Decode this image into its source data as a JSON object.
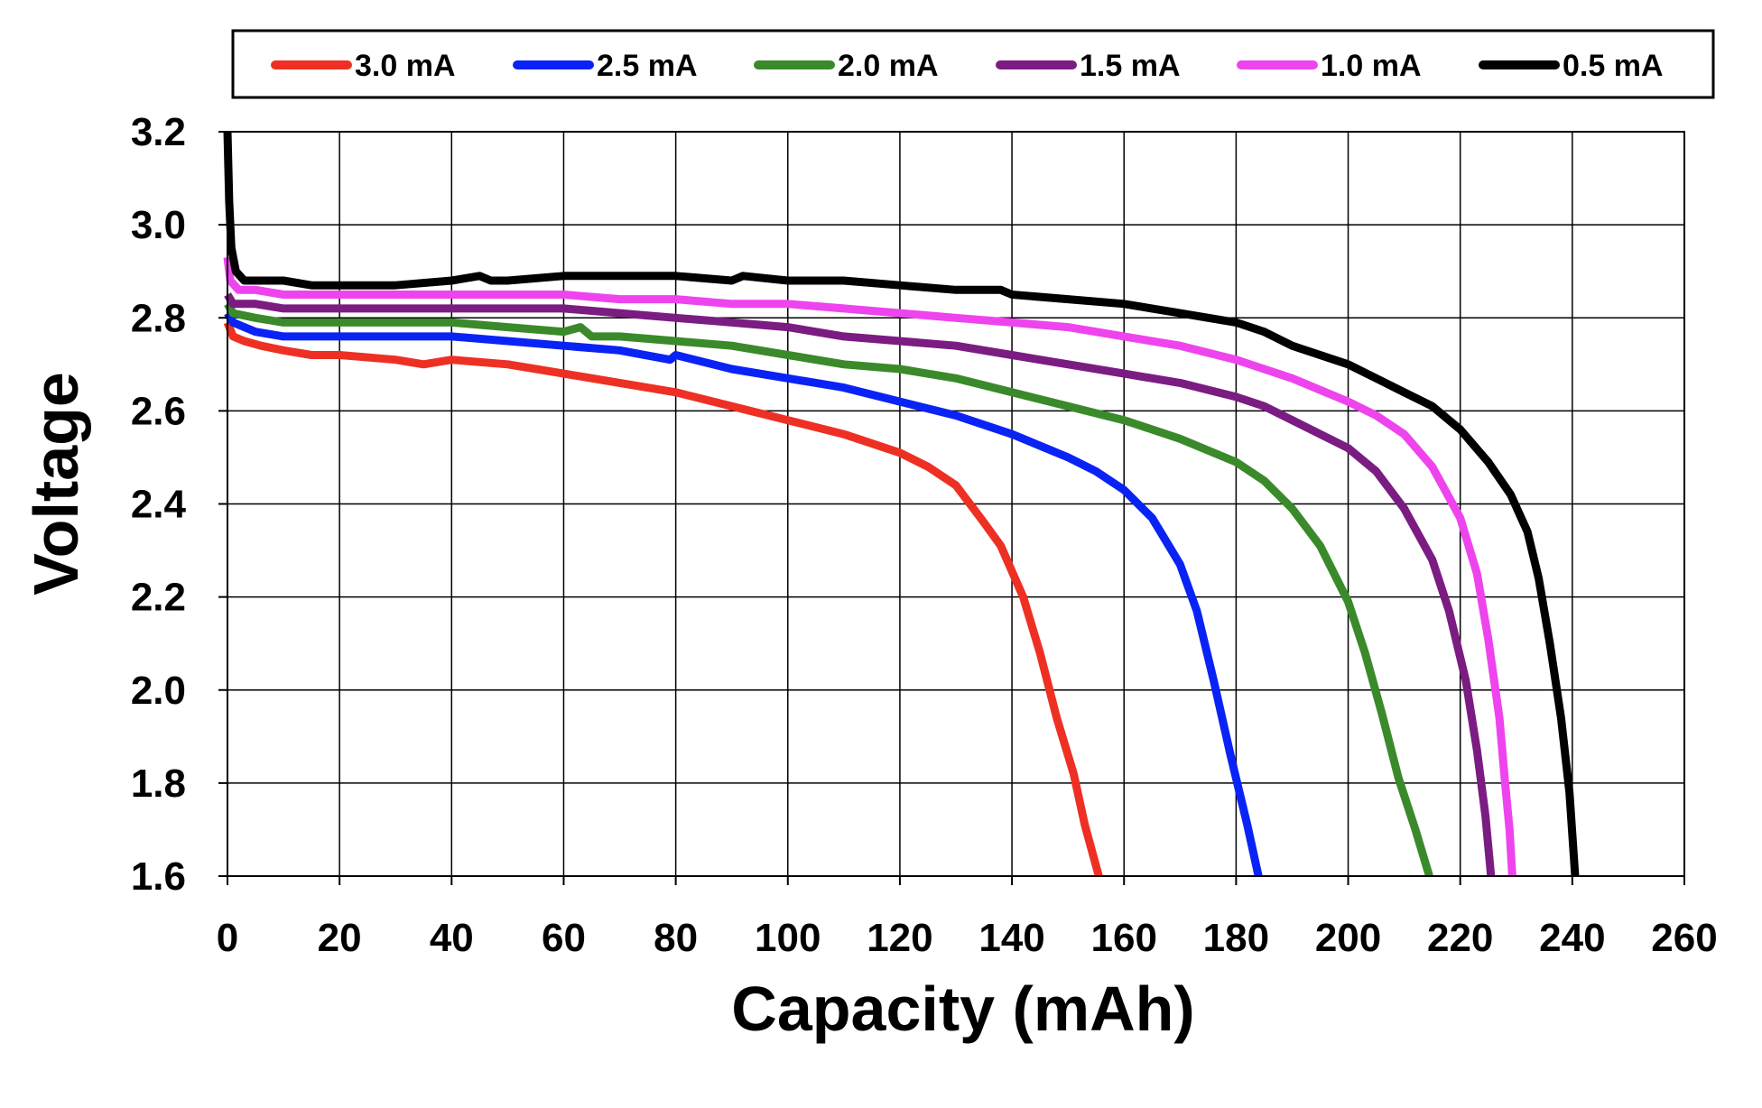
{
  "chart_data": {
    "type": "line",
    "title": "",
    "xlabel": "Capacity (mAh)",
    "ylabel": "Voltage",
    "xlim": [
      0,
      260
    ],
    "ylim": [
      1.6,
      3.2
    ],
    "xticks": [
      0,
      20,
      40,
      60,
      80,
      100,
      120,
      140,
      160,
      180,
      200,
      220,
      240,
      260
    ],
    "yticks": [
      "1.6",
      "1.8",
      "2.0",
      "2.2",
      "2.4",
      "2.6",
      "2.8",
      "3.0",
      "3.2"
    ],
    "grid": true,
    "legend_position": "top",
    "series": [
      {
        "name": "3.0 mA",
        "color": "#ee3024",
        "points": [
          [
            0,
            2.79
          ],
          [
            1,
            2.76
          ],
          [
            3,
            2.75
          ],
          [
            6,
            2.74
          ],
          [
            10,
            2.73
          ],
          [
            15,
            2.72
          ],
          [
            20,
            2.72
          ],
          [
            30,
            2.71
          ],
          [
            35,
            2.7
          ],
          [
            40,
            2.71
          ],
          [
            50,
            2.7
          ],
          [
            60,
            2.68
          ],
          [
            70,
            2.66
          ],
          [
            80,
            2.64
          ],
          [
            90,
            2.61
          ],
          [
            100,
            2.58
          ],
          [
            110,
            2.55
          ],
          [
            120,
            2.51
          ],
          [
            125,
            2.48
          ],
          [
            130,
            2.44
          ],
          [
            135,
            2.36
          ],
          [
            138,
            2.31
          ],
          [
            142,
            2.2
          ],
          [
            145,
            2.08
          ],
          [
            148,
            1.94
          ],
          [
            151,
            1.82
          ],
          [
            153,
            1.71
          ],
          [
            155.5,
            1.6
          ]
        ]
      },
      {
        "name": "2.5 mA",
        "color": "#0a23f5",
        "points": [
          [
            0,
            2.81
          ],
          [
            1,
            2.79
          ],
          [
            5,
            2.77
          ],
          [
            10,
            2.76
          ],
          [
            20,
            2.76
          ],
          [
            30,
            2.76
          ],
          [
            40,
            2.76
          ],
          [
            50,
            2.75
          ],
          [
            60,
            2.74
          ],
          [
            70,
            2.73
          ],
          [
            79,
            2.71
          ],
          [
            80,
            2.72
          ],
          [
            90,
            2.69
          ],
          [
            100,
            2.67
          ],
          [
            110,
            2.65
          ],
          [
            120,
            2.62
          ],
          [
            130,
            2.59
          ],
          [
            140,
            2.55
          ],
          [
            150,
            2.5
          ],
          [
            155,
            2.47
          ],
          [
            160,
            2.43
          ],
          [
            165,
            2.37
          ],
          [
            170,
            2.27
          ],
          [
            173,
            2.17
          ],
          [
            176,
            2.02
          ],
          [
            179,
            1.86
          ],
          [
            182,
            1.71
          ],
          [
            184,
            1.6
          ]
        ]
      },
      {
        "name": "2.0 mA",
        "color": "#3a8a2b",
        "points": [
          [
            0,
            2.83
          ],
          [
            1,
            2.81
          ],
          [
            5,
            2.8
          ],
          [
            10,
            2.79
          ],
          [
            20,
            2.79
          ],
          [
            30,
            2.79
          ],
          [
            40,
            2.79
          ],
          [
            50,
            2.78
          ],
          [
            60,
            2.77
          ],
          [
            63,
            2.78
          ],
          [
            65,
            2.76
          ],
          [
            70,
            2.76
          ],
          [
            80,
            2.75
          ],
          [
            90,
            2.74
          ],
          [
            100,
            2.72
          ],
          [
            110,
            2.7
          ],
          [
            120,
            2.69
          ],
          [
            130,
            2.67
          ],
          [
            140,
            2.64
          ],
          [
            150,
            2.61
          ],
          [
            160,
            2.58
          ],
          [
            170,
            2.54
          ],
          [
            180,
            2.49
          ],
          [
            185,
            2.45
          ],
          [
            190,
            2.39
          ],
          [
            195,
            2.31
          ],
          [
            200,
            2.19
          ],
          [
            203,
            2.08
          ],
          [
            206,
            1.95
          ],
          [
            209,
            1.81
          ],
          [
            212,
            1.7
          ],
          [
            214.5,
            1.6
          ]
        ]
      },
      {
        "name": "1.5 mA",
        "color": "#7b1c82",
        "points": [
          [
            0,
            2.85
          ],
          [
            1,
            2.83
          ],
          [
            5,
            2.83
          ],
          [
            10,
            2.82
          ],
          [
            20,
            2.82
          ],
          [
            30,
            2.82
          ],
          [
            40,
            2.82
          ],
          [
            50,
            2.82
          ],
          [
            60,
            2.82
          ],
          [
            70,
            2.81
          ],
          [
            80,
            2.8
          ],
          [
            90,
            2.79
          ],
          [
            100,
            2.78
          ],
          [
            110,
            2.76
          ],
          [
            120,
            2.75
          ],
          [
            130,
            2.74
          ],
          [
            140,
            2.72
          ],
          [
            150,
            2.7
          ],
          [
            160,
            2.68
          ],
          [
            170,
            2.66
          ],
          [
            180,
            2.63
          ],
          [
            185,
            2.61
          ],
          [
            190,
            2.58
          ],
          [
            200,
            2.52
          ],
          [
            205,
            2.47
          ],
          [
            210,
            2.39
          ],
          [
            215,
            2.28
          ],
          [
            218,
            2.17
          ],
          [
            221,
            2.02
          ],
          [
            223,
            1.87
          ],
          [
            224.5,
            1.73
          ],
          [
            225.5,
            1.6
          ]
        ]
      },
      {
        "name": "1.0 mA",
        "color": "#ee44ee",
        "points": [
          [
            0,
            2.93
          ],
          [
            0.5,
            2.88
          ],
          [
            2,
            2.86
          ],
          [
            5,
            2.86
          ],
          [
            10,
            2.85
          ],
          [
            20,
            2.85
          ],
          [
            30,
            2.85
          ],
          [
            40,
            2.85
          ],
          [
            50,
            2.85
          ],
          [
            60,
            2.85
          ],
          [
            70,
            2.84
          ],
          [
            80,
            2.84
          ],
          [
            90,
            2.83
          ],
          [
            100,
            2.83
          ],
          [
            110,
            2.82
          ],
          [
            120,
            2.81
          ],
          [
            130,
            2.8
          ],
          [
            140,
            2.79
          ],
          [
            150,
            2.78
          ],
          [
            160,
            2.76
          ],
          [
            170,
            2.74
          ],
          [
            180,
            2.71
          ],
          [
            190,
            2.67
          ],
          [
            200,
            2.62
          ],
          [
            205,
            2.59
          ],
          [
            210,
            2.55
          ],
          [
            215,
            2.48
          ],
          [
            220,
            2.37
          ],
          [
            223,
            2.25
          ],
          [
            225,
            2.11
          ],
          [
            227,
            1.94
          ],
          [
            228,
            1.8
          ],
          [
            228.8,
            1.7
          ],
          [
            229.3,
            1.6
          ]
        ]
      },
      {
        "name": "0.5 mA",
        "color": "#000000",
        "points": [
          [
            0,
            3.2
          ],
          [
            0.3,
            3.05
          ],
          [
            0.7,
            2.95
          ],
          [
            1.5,
            2.9
          ],
          [
            3,
            2.88
          ],
          [
            10,
            2.88
          ],
          [
            15,
            2.87
          ],
          [
            20,
            2.87
          ],
          [
            30,
            2.87
          ],
          [
            40,
            2.88
          ],
          [
            45,
            2.89
          ],
          [
            47,
            2.88
          ],
          [
            50,
            2.88
          ],
          [
            60,
            2.89
          ],
          [
            70,
            2.89
          ],
          [
            80,
            2.89
          ],
          [
            90,
            2.88
          ],
          [
            92,
            2.89
          ],
          [
            100,
            2.88
          ],
          [
            110,
            2.88
          ],
          [
            120,
            2.87
          ],
          [
            130,
            2.86
          ],
          [
            138,
            2.86
          ],
          [
            140,
            2.85
          ],
          [
            150,
            2.84
          ],
          [
            160,
            2.83
          ],
          [
            170,
            2.81
          ],
          [
            180,
            2.79
          ],
          [
            185,
            2.77
          ],
          [
            190,
            2.74
          ],
          [
            200,
            2.7
          ],
          [
            210,
            2.64
          ],
          [
            215,
            2.61
          ],
          [
            220,
            2.56
          ],
          [
            225,
            2.49
          ],
          [
            229,
            2.42
          ],
          [
            232,
            2.34
          ],
          [
            234,
            2.24
          ],
          [
            236,
            2.1
          ],
          [
            238,
            1.94
          ],
          [
            239.5,
            1.78
          ],
          [
            240.5,
            1.6
          ]
        ]
      }
    ]
  }
}
